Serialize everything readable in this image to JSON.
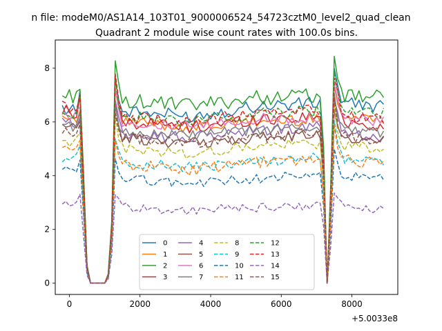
{
  "chart_data": {
    "type": "line",
    "suptitle": "n file: modeM0/AS1A14_103T01_9000006524_54723cztM0_level2_quad_clean",
    "title": "Quadrant 2 module wise count rates with 100.0s bins.",
    "xlabel": "",
    "ylabel": "",
    "x_offset_label": "+5.0033e8",
    "xlim": [
      -400,
      9300
    ],
    "ylim": [
      -0.42,
      9.05
    ],
    "x_ticks": [
      0,
      2000,
      4000,
      6000,
      8000
    ],
    "x_tick_labels": [
      "0",
      "2000",
      "4000",
      "6000",
      "8000"
    ],
    "y_ticks": [
      0,
      2,
      4,
      6,
      8
    ],
    "y_tick_labels": [
      "0",
      "2",
      "4",
      "6",
      "8"
    ],
    "grid": false,
    "legend": {
      "placement": "lower center",
      "columns": 4
    },
    "profile": {
      "x": [
        -200,
        -100,
        0,
        100,
        200,
        300,
        350,
        450,
        550,
        650,
        750,
        850,
        950,
        1050,
        1150,
        1250,
        1300,
        1400,
        1500,
        1600,
        1700,
        1800,
        7100,
        7200,
        7300,
        7400,
        7500,
        7600,
        7700,
        7800,
        8900
      ],
      "f": [
        1,
        1,
        1,
        1,
        1,
        1.08,
        1,
        0.2,
        0,
        0,
        0,
        0,
        0,
        0,
        0.1,
        0.6,
        1.2,
        1.05,
        1,
        1,
        1,
        1,
        1,
        0.7,
        0,
        0.5,
        1.2,
        1.08,
        1.03,
        1,
        1
      ],
      "f_dashed": [
        1,
        1,
        1,
        1,
        1,
        1.08,
        1,
        0.2,
        0,
        0,
        0,
        0,
        0,
        0,
        0.1,
        0.6,
        1.2,
        1.05,
        1,
        1,
        1,
        1,
        1,
        0.7,
        0,
        0.5,
        1.25,
        1.1,
        1.03,
        1,
        1
      ]
    },
    "series": [
      {
        "name": "0",
        "color": "#1f77b4",
        "dash": "solid",
        "level": [
          6.5,
          6.4,
          6.2,
          6.6,
          6.7,
          6.6
        ],
        "noise": 0.25
      },
      {
        "name": "1",
        "color": "#ff7f0e",
        "dash": "solid",
        "level": [
          6.2,
          6.0,
          5.8,
          6.0,
          6.1,
          6.2
        ],
        "noise": 0.22
      },
      {
        "name": "2",
        "color": "#2ca02c",
        "dash": "solid",
        "level": [
          7.0,
          6.8,
          6.6,
          6.9,
          7.0,
          6.9
        ],
        "noise": 0.28
      },
      {
        "name": "3",
        "color": "#d62728",
        "dash": "solid",
        "level": [
          6.4,
          6.0,
          5.8,
          6.1,
          6.2,
          5.8
        ],
        "noise": 0.25
      },
      {
        "name": "4",
        "color": "#9467bd",
        "dash": "solid",
        "level": [
          6.0,
          5.6,
          5.4,
          5.7,
          5.8,
          5.4
        ],
        "noise": 0.22
      },
      {
        "name": "5",
        "color": "#8c564b",
        "dash": "solid",
        "level": [
          5.8,
          5.4,
          5.2,
          5.4,
          5.5,
          5.3
        ],
        "noise": 0.22
      },
      {
        "name": "6",
        "color": "#e377c2",
        "dash": "solid",
        "level": [
          6.3,
          6.0,
          5.8,
          6.1,
          6.2,
          6.0
        ],
        "noise": 0.22
      },
      {
        "name": "7",
        "color": "#7f7f7f",
        "dash": "solid",
        "level": [
          5.9,
          5.6,
          5.5,
          5.7,
          5.8,
          5.6
        ],
        "noise": 0.2
      },
      {
        "name": "8",
        "color": "#bcbd22",
        "dash": "dashed",
        "level": [
          5.3,
          5.0,
          4.8,
          5.1,
          5.2,
          5.0
        ],
        "noise": 0.2
      },
      {
        "name": "9",
        "color": "#17becf",
        "dash": "dashed",
        "level": [
          4.7,
          4.5,
          4.3,
          4.5,
          4.7,
          4.5
        ],
        "noise": 0.2
      },
      {
        "name": "10",
        "color": "#1f77b4",
        "dash": "dashed",
        "level": [
          4.2,
          3.9,
          3.7,
          3.9,
          4.0,
          3.9
        ],
        "noise": 0.18
      },
      {
        "name": "11",
        "color": "#ff7f0e",
        "dash": "dashed",
        "level": [
          5.0,
          4.4,
          4.2,
          4.5,
          4.6,
          4.5
        ],
        "noise": 0.22
      },
      {
        "name": "12",
        "color": "#2ca02c",
        "dash": "dashed",
        "level": [
          6.4,
          6.2,
          6.0,
          6.3,
          6.4,
          6.3
        ],
        "noise": 0.22
      },
      {
        "name": "13",
        "color": "#d62728",
        "dash": "dashed",
        "level": [
          6.6,
          6.2,
          6.0,
          6.3,
          6.4,
          6.1
        ],
        "noise": 0.25
      },
      {
        "name": "14",
        "color": "#9467bd",
        "dash": "dashed",
        "level": [
          3.0,
          2.8,
          2.7,
          2.8,
          2.9,
          2.7
        ],
        "noise": 0.18
      },
      {
        "name": "15",
        "color": "#8c564b",
        "dash": "dashed",
        "level": [
          5.6,
          5.4,
          5.2,
          5.4,
          5.6,
          5.3
        ],
        "noise": 0.2
      }
    ]
  }
}
